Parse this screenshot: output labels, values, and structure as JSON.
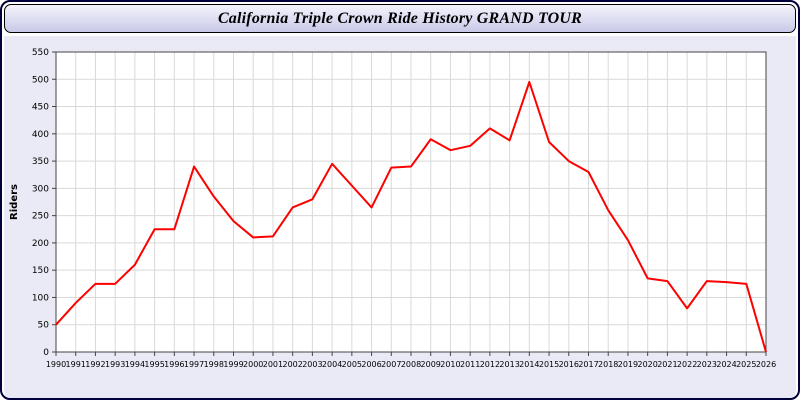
{
  "window": {
    "title": "California Triple Crown Ride History GRAND TOUR"
  },
  "chart_data": {
    "type": "line",
    "title": "California Triple Crown Ride History GRAND TOUR",
    "xlabel": "",
    "ylabel": "Riders",
    "ylim": [
      0,
      550
    ],
    "ytick_step": 50,
    "grid": true,
    "legend_position": "none",
    "line_color": "#ff0000",
    "x": [
      1990,
      1991,
      1992,
      1993,
      1994,
      1995,
      1996,
      1997,
      1998,
      1999,
      2000,
      2001,
      2002,
      2003,
      2004,
      2005,
      2006,
      2007,
      2008,
      2009,
      2010,
      2011,
      2012,
      2013,
      2014,
      2015,
      2016,
      2017,
      2018,
      2019,
      2020,
      2021,
      2022,
      2023,
      2024,
      2025,
      2026
    ],
    "values": [
      50,
      90,
      125,
      125,
      160,
      225,
      225,
      340,
      285,
      240,
      210,
      212,
      265,
      280,
      345,
      305,
      265,
      338,
      340,
      390,
      370,
      378,
      410,
      388,
      495,
      385,
      350,
      330,
      260,
      205,
      135,
      130,
      80,
      130,
      128,
      125,
      0
    ],
    "colors": {
      "plot_bg": "#ffffff",
      "grid": "#d9d9d9",
      "axis": "#444444",
      "tick_text": "#000000",
      "panel_bg": "#eaeaf6",
      "titlebar_bg": "#d8d8f0",
      "window_border": "#00003c",
      "line": "#ff0000"
    }
  }
}
